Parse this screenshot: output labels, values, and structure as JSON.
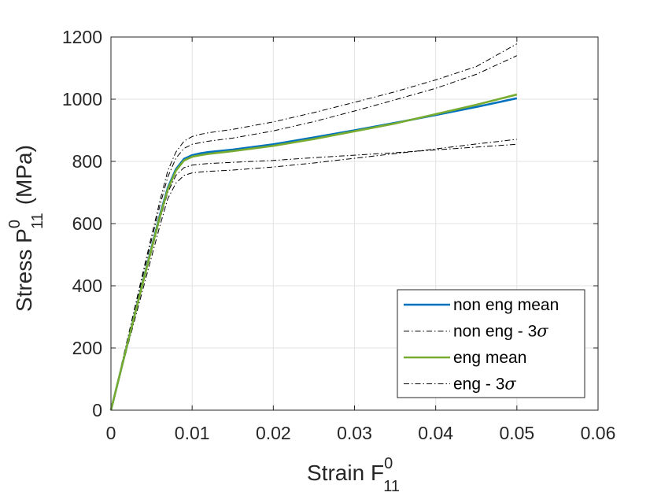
{
  "chart_data": {
    "type": "line",
    "xlabel": {
      "text": "Strain F",
      "sup": "0",
      "sub": "11"
    },
    "ylabel": {
      "text": "Stress P",
      "sup": "0",
      "sub": "11",
      "suffix": "(MPa)"
    },
    "xlim": [
      0,
      0.06
    ],
    "ylim": [
      0,
      1200
    ],
    "xticks": [
      0,
      0.01,
      0.02,
      0.03,
      0.04,
      0.05,
      0.06
    ],
    "xtick_labels": [
      "0",
      "0.01",
      "0.02",
      "0.03",
      "0.04",
      "0.05",
      "0.06"
    ],
    "yticks": [
      0,
      200,
      400,
      600,
      800,
      1000,
      1200
    ],
    "ytick_labels": [
      "0",
      "200",
      "400",
      "600",
      "800",
      "1000",
      "1200"
    ],
    "grid": true,
    "legend_position": "bottom-right",
    "series": [
      {
        "name": "non eng mean",
        "legend_label": "non eng mean",
        "color": "#0072BD",
        "style": "solid",
        "in_legend": true,
        "x": [
          0,
          0.002,
          0.004,
          0.006,
          0.007,
          0.008,
          0.009,
          0.01,
          0.011,
          0.012,
          0.015,
          0.02,
          0.025,
          0.03,
          0.035,
          0.04,
          0.045,
          0.05
        ],
        "y": [
          0,
          210,
          420,
          625,
          715,
          775,
          808,
          820,
          826,
          830,
          838,
          855,
          877,
          900,
          924,
          949,
          975,
          1003
        ]
      },
      {
        "name": "non eng + 3σ",
        "color": "#000000",
        "style": "dashdot",
        "in_legend": false,
        "x": [
          0,
          0.002,
          0.004,
          0.006,
          0.007,
          0.008,
          0.009,
          0.01,
          0.011,
          0.012,
          0.015,
          0.02,
          0.025,
          0.03,
          0.035,
          0.04,
          0.045,
          0.05
        ],
        "y": [
          0,
          225,
          450,
          670,
          770,
          830,
          865,
          880,
          887,
          892,
          903,
          927,
          957,
          990,
          1024,
          1062,
          1105,
          1178
        ]
      },
      {
        "name": "non eng - 3σ",
        "legend_label": "non eng - 3",
        "legend_symbol": "σ",
        "color": "#000000",
        "style": "dashdot",
        "in_legend": true,
        "x": [
          0,
          0.002,
          0.004,
          0.006,
          0.007,
          0.008,
          0.009,
          0.01,
          0.011,
          0.012,
          0.015,
          0.02,
          0.025,
          0.03,
          0.035,
          0.04,
          0.045,
          0.05
        ],
        "y": [
          0,
          200,
          395,
          590,
          680,
          730,
          755,
          763,
          766,
          768,
          772,
          782,
          795,
          810,
          825,
          840,
          856,
          871
        ]
      },
      {
        "name": "eng mean",
        "legend_label": "eng mean",
        "color": "#77AC30",
        "style": "solid",
        "in_legend": true,
        "x": [
          0,
          0.002,
          0.004,
          0.006,
          0.007,
          0.008,
          0.009,
          0.01,
          0.011,
          0.012,
          0.015,
          0.02,
          0.025,
          0.03,
          0.035,
          0.04,
          0.045,
          0.05
        ],
        "y": [
          0,
          210,
          418,
          620,
          710,
          770,
          803,
          815,
          820,
          824,
          833,
          850,
          872,
          897,
          922,
          952,
          982,
          1015
        ]
      },
      {
        "name": "eng + 3σ",
        "color": "#000000",
        "style": "dashdot",
        "in_legend": false,
        "x": [
          0,
          0.002,
          0.004,
          0.006,
          0.007,
          0.008,
          0.009,
          0.01,
          0.011,
          0.012,
          0.015,
          0.02,
          0.025,
          0.03,
          0.035,
          0.04,
          0.045,
          0.05
        ],
        "y": [
          0,
          220,
          440,
          655,
          750,
          810,
          842,
          855,
          860,
          865,
          875,
          898,
          928,
          962,
          998,
          1035,
          1080,
          1140
        ]
      },
      {
        "name": "eng - 3σ",
        "legend_label": "eng - 3",
        "legend_symbol": "σ",
        "color": "#000000",
        "style": "dashdot",
        "in_legend": true,
        "x": [
          0,
          0.002,
          0.004,
          0.006,
          0.007,
          0.008,
          0.009,
          0.01,
          0.011,
          0.012,
          0.015,
          0.02,
          0.025,
          0.03,
          0.035,
          0.04,
          0.045,
          0.05
        ],
        "y": [
          0,
          205,
          410,
          610,
          700,
          755,
          780,
          788,
          791,
          793,
          797,
          803,
          812,
          820,
          828,
          837,
          846,
          855
        ]
      }
    ]
  }
}
